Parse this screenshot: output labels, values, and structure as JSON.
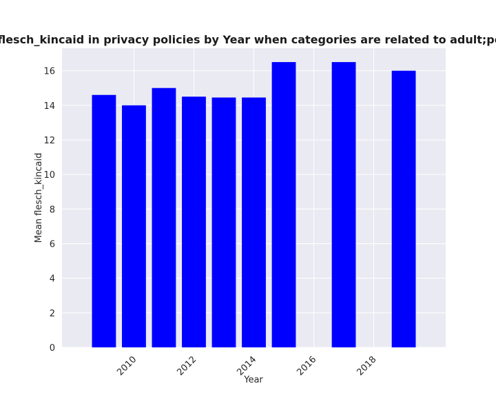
{
  "chart_data": {
    "type": "bar",
    "title": "Mean flesch_kincaid in privacy policies by Year when categories are related to adult;personals",
    "xlabel": "Year",
    "ylabel": "Mean flesch_kincaid",
    "x": [
      2009,
      2010,
      2011,
      2012,
      2013,
      2014,
      2015,
      2017,
      2019
    ],
    "values": [
      14.6,
      14.0,
      15.0,
      14.5,
      14.45,
      14.45,
      16.5,
      16.5,
      16.0
    ],
    "xlim": [
      2007.6,
      2020.4
    ],
    "ylim": [
      0,
      17.3
    ],
    "xticks": [
      2010,
      2012,
      2014,
      2016,
      2018
    ],
    "yticks": [
      0,
      2,
      4,
      6,
      8,
      10,
      12,
      14,
      16
    ],
    "bar_color": "#0000ff",
    "plot_background": "#eaeaf2",
    "grid_color": "#ffffff",
    "grid": true
  }
}
